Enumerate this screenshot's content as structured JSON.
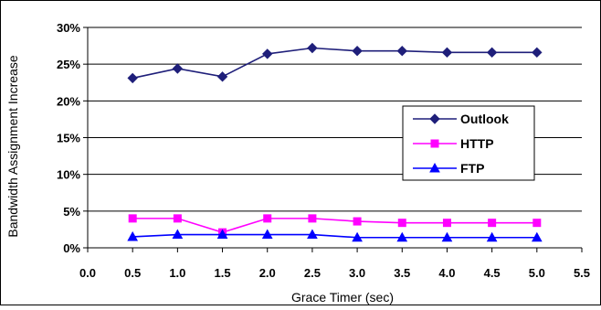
{
  "chart_data": {
    "type": "line",
    "xlabel": "Grace  Timer (sec)",
    "ylabel": "Bandwidth Assignment Increase",
    "xlim": [
      0.0,
      5.5
    ],
    "ylim": [
      0,
      30
    ],
    "x_ticks": [
      "0.0",
      "0.5",
      "1.0",
      "1.5",
      "2.0",
      "2.5",
      "3.0",
      "3.5",
      "4.0",
      "4.5",
      "5.0",
      "5.5"
    ],
    "y_ticks": [
      "0%",
      "5%",
      "10%",
      "15%",
      "20%",
      "25%",
      "30%"
    ],
    "grid": "horizontal",
    "legend_position": "right",
    "x": [
      0.5,
      1.0,
      1.5,
      2.0,
      2.5,
      3.0,
      3.5,
      4.0,
      4.5,
      5.0
    ],
    "series": [
      {
        "name": "Outlook",
        "color": "#1f1f7a",
        "marker": "diamond",
        "values": [
          23.1,
          24.4,
          23.3,
          26.4,
          27.2,
          26.8,
          26.8,
          26.6,
          26.6,
          26.6
        ]
      },
      {
        "name": "HTTP",
        "color": "#ff00ff",
        "marker": "square",
        "values": [
          4.0,
          4.0,
          2.1,
          4.0,
          4.0,
          3.6,
          3.4,
          3.4,
          3.4,
          3.4
        ]
      },
      {
        "name": "FTP",
        "color": "#0000ff",
        "marker": "triangle",
        "values": [
          1.5,
          1.8,
          1.8,
          1.8,
          1.8,
          1.4,
          1.4,
          1.4,
          1.4,
          1.4
        ]
      }
    ]
  }
}
